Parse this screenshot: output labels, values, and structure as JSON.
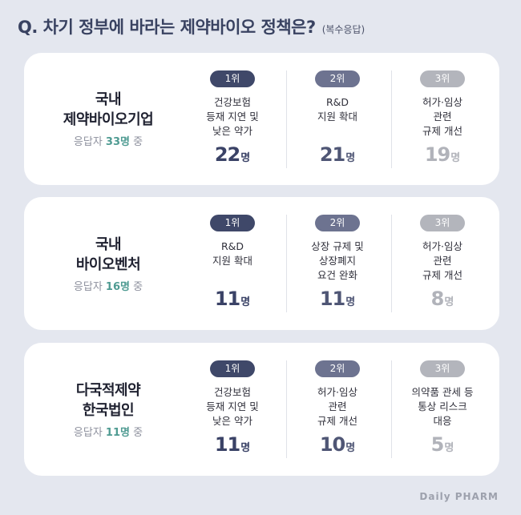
{
  "header": {
    "question": "Q. 차기 정부에 바라는 제약바이오 정책은?",
    "note": "(복수응답)"
  },
  "groups": [
    {
      "name_line1": "국내",
      "name_line2": "제약바이오기업",
      "resp_prefix": "응답자 ",
      "resp_count": "33명",
      "resp_suffix": " 중",
      "ranks": [
        {
          "badge": "1위",
          "lines": [
            "건강보험",
            "등재 지연 및",
            "낮은 약가"
          ],
          "count": "22",
          "unit": "명"
        },
        {
          "badge": "2위",
          "lines": [
            "R&D",
            "지원 확대",
            ""
          ],
          "count": "21",
          "unit": "명"
        },
        {
          "badge": "3위",
          "lines": [
            "허가·임상",
            "관련",
            "규제 개선"
          ],
          "count": "19",
          "unit": "명"
        }
      ]
    },
    {
      "name_line1": "국내",
      "name_line2": "바이오벤처",
      "resp_prefix": "응답자 ",
      "resp_count": "16명",
      "resp_suffix": " 중",
      "ranks": [
        {
          "badge": "1위",
          "lines": [
            "R&D",
            "지원 확대",
            ""
          ],
          "count": "11",
          "unit": "명"
        },
        {
          "badge": "2위",
          "lines": [
            "상장 규제 및",
            "상장폐지",
            "요건 완화"
          ],
          "count": "11",
          "unit": "명"
        },
        {
          "badge": "3위",
          "lines": [
            "허가·임상",
            "관련",
            "규제 개선"
          ],
          "count": "8",
          "unit": "명"
        }
      ]
    },
    {
      "name_line1": "다국적제약",
      "name_line2": "한국법인",
      "resp_prefix": "응답자 ",
      "resp_count": "11명",
      "resp_suffix": " 중",
      "ranks": [
        {
          "badge": "1위",
          "lines": [
            "건강보험",
            "등재 지연 및",
            "낮은 약가"
          ],
          "count": "11",
          "unit": "명"
        },
        {
          "badge": "2위",
          "lines": [
            "허가·임상",
            "관련",
            "규제 개선"
          ],
          "count": "10",
          "unit": "명"
        },
        {
          "badge": "3위",
          "lines": [
            "의약품 관세 등",
            "통상 리스크",
            "대응"
          ],
          "count": "5",
          "unit": "명"
        }
      ]
    }
  ],
  "logo": "Daily PHARM"
}
